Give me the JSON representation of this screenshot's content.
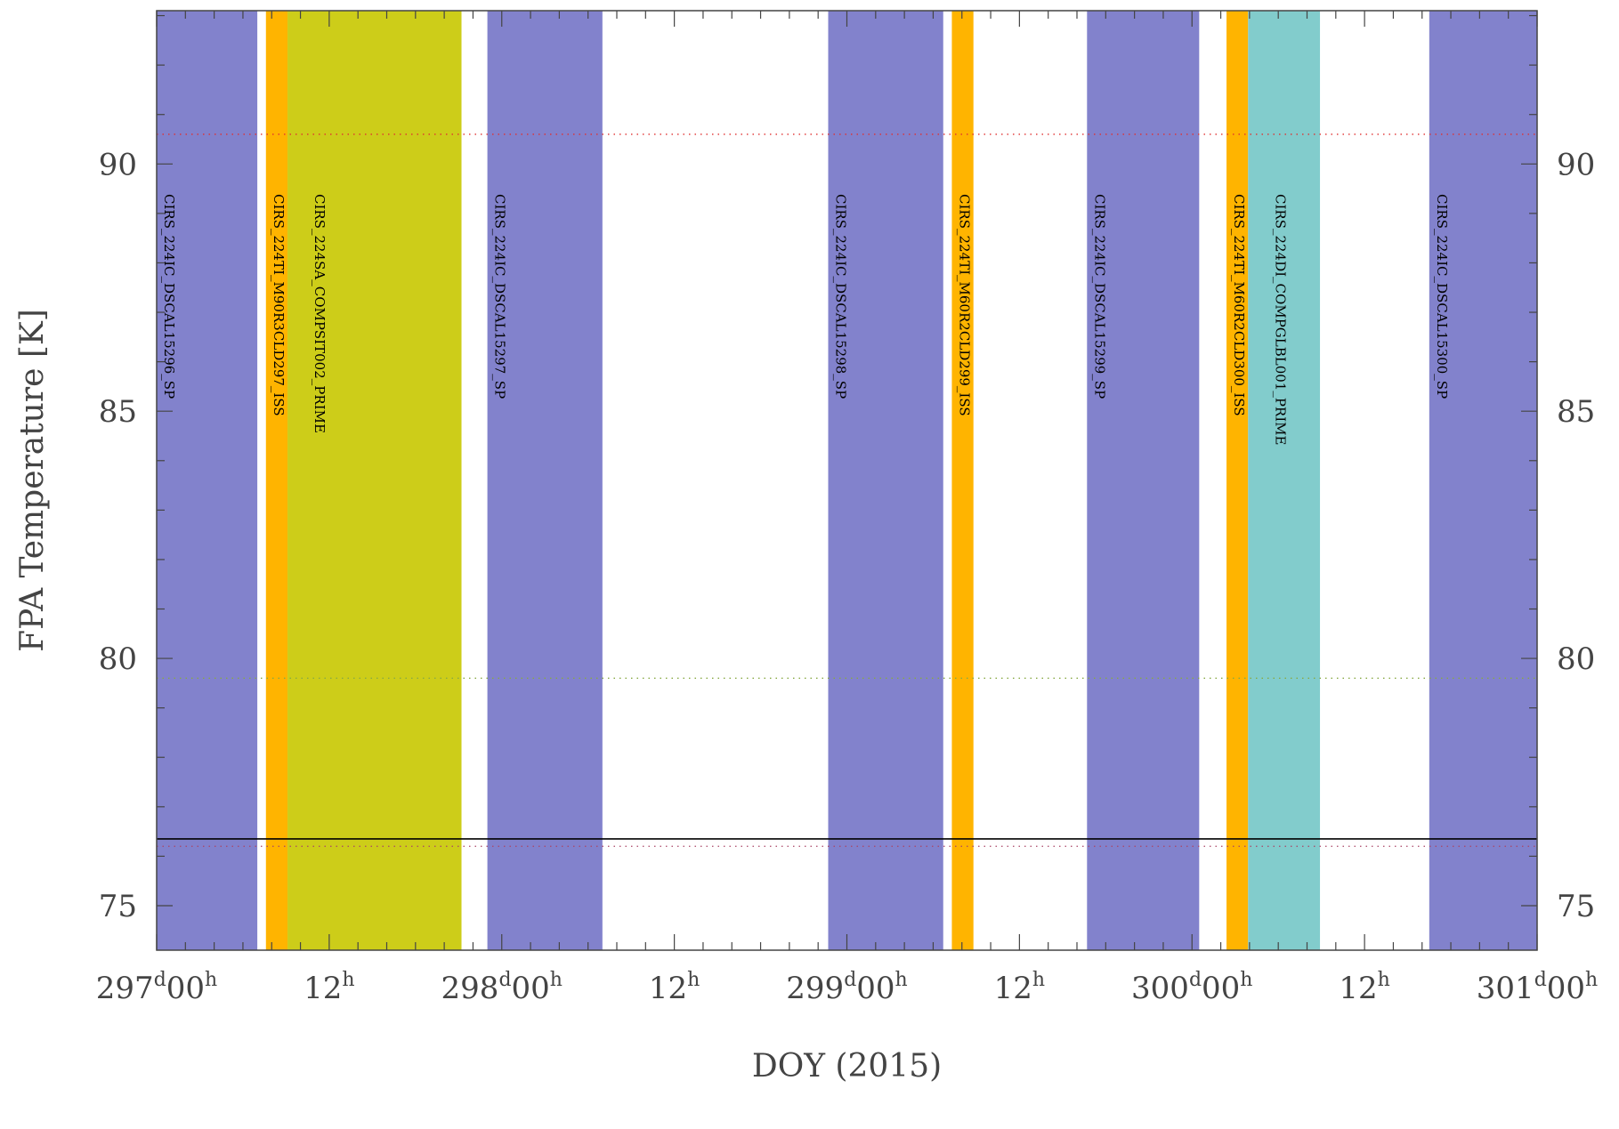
{
  "chart_data": {
    "type": "timeline",
    "xlabel": "DOY (2015)",
    "ylabel": "FPA Temperature [K]",
    "xlim_hours": [
      0,
      96
    ],
    "x_origin_doy": 297,
    "ylim": [
      74.1,
      93.1
    ],
    "y_ticks": [
      75,
      80,
      85,
      90
    ],
    "y_tick_labels": [
      "75",
      "80",
      "85",
      "90"
    ],
    "x_ticks": [
      {
        "h": 0,
        "doy": "297",
        "time": "00",
        "text": "",
        "day": true
      },
      {
        "h": 12,
        "doy": "",
        "time": "12",
        "text": "",
        "day": false
      },
      {
        "h": 24,
        "doy": "298",
        "time": "00",
        "text": "",
        "day": true
      },
      {
        "h": 36,
        "doy": "",
        "time": "12",
        "text": "",
        "day": false
      },
      {
        "h": 48,
        "doy": "299",
        "time": "00",
        "text": "",
        "day": true
      },
      {
        "h": 60,
        "doy": "",
        "time": "12",
        "text": "",
        "day": false
      },
      {
        "h": 72,
        "doy": "300",
        "time": "00",
        "text": "",
        "day": true
      },
      {
        "h": 84,
        "doy": "",
        "time": "12",
        "text": "",
        "day": false
      },
      {
        "h": 96,
        "doy": "301",
        "time": "00",
        "text": "",
        "day": true
      }
    ],
    "bands": [
      {
        "start": 0.0,
        "end": 7.0,
        "color": "#8282cc",
        "label": "CIRS_224IC_DSCAL15296_SP",
        "label_slot": 0
      },
      {
        "start": 7.6,
        "end": 9.1,
        "color": "#ffb400",
        "label": "CIRS_224TI_M90R3CLD297_ISS",
        "label_slot": 0
      },
      {
        "start": 9.1,
        "end": 21.2,
        "color": "#cdcd19",
        "label": "CIRS_224SA_COMPSIT002_PRIME",
        "label_slot": 1
      },
      {
        "start": 23.0,
        "end": 31.0,
        "color": "#8282cc",
        "label": "CIRS_224IC_DSCAL15297_SP",
        "label_slot": 0
      },
      {
        "start": 46.7,
        "end": 54.7,
        "color": "#8282cc",
        "label": "CIRS_224IC_DSCAL15298_SP",
        "label_slot": 0
      },
      {
        "start": 55.3,
        "end": 56.8,
        "color": "#ffb400",
        "label": "CIRS_224TI_M60R2CLD299_ISS",
        "label_slot": 0
      },
      {
        "start": 64.7,
        "end": 72.5,
        "color": "#8282cc",
        "label": "CIRS_224IC_DSCAL15299_SP",
        "label_slot": 0
      },
      {
        "start": 74.4,
        "end": 75.9,
        "color": "#ffb400",
        "label": "CIRS_224TI_M60R2CLD300_ISS",
        "label_slot": 0
      },
      {
        "start": 75.9,
        "end": 80.9,
        "color": "#82cccc",
        "label": "CIRS_224DI_COMPGLBL001_PRIME",
        "label_slot": 1
      },
      {
        "start": 88.5,
        "end": 96.0,
        "color": "#8282cc",
        "label": "CIRS_224IC_DSCAL15300_SP",
        "label_slot": 0
      }
    ],
    "lines": [
      {
        "y": 90.6,
        "style": "dotted",
        "color": "#e03030",
        "name": ""
      },
      {
        "y": 79.6,
        "style": "dotted",
        "color": "#88aa44",
        "name": ""
      },
      {
        "y": 76.2,
        "style": "dotted",
        "color": "#aa4466",
        "name": ""
      },
      {
        "y": 76.35,
        "style": "solid",
        "color": "#000000",
        "name": ""
      }
    ],
    "grid": false,
    "legend": false
  }
}
